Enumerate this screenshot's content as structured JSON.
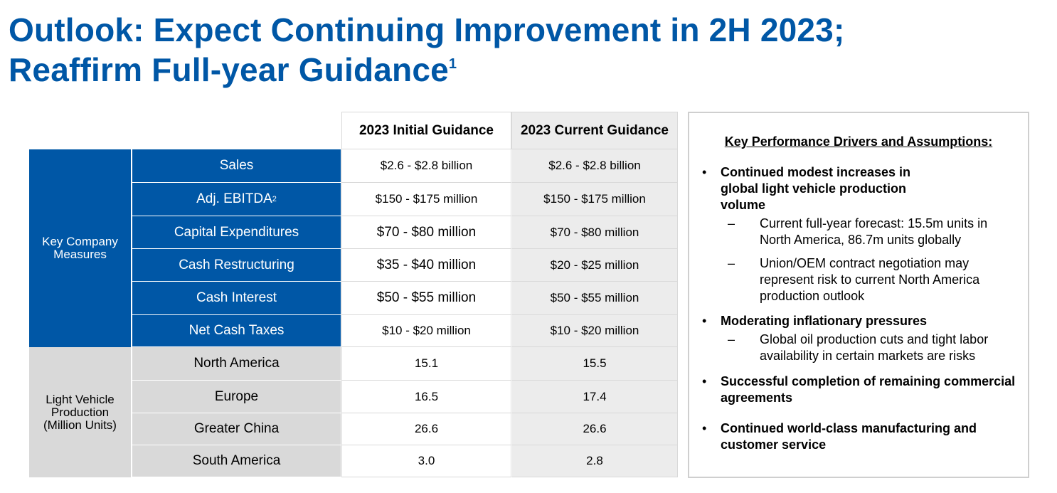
{
  "title": {
    "line1": "Outlook: Expect Continuing Improvement in 2H 2023;",
    "line2": "Reaffirm Full-year Guidance",
    "footnote": "1"
  },
  "table": {
    "headers": {
      "initial": "2023 Initial Guidance",
      "current": "2023 Current Guidance"
    },
    "groups": {
      "company": "Key Company Measures",
      "vehicle": "Light Vehicle Production (Million Units)"
    },
    "rows": [
      {
        "label": "Sales",
        "initial": "$2.6 - $2.8 billion",
        "current": "$2.6 - $2.8 billion"
      },
      {
        "label": "Adj. EBITDA",
        "sup": "2",
        "initial": "$150 - $175 million",
        "current": "$150 - $175 million"
      },
      {
        "label": "Capital Expenditures",
        "initial": "$70 - $80 million",
        "current": "$70 - $80 million"
      },
      {
        "label": "Cash Restructuring",
        "initial": "$35 - $40 million",
        "current": "$20 - $25 million"
      },
      {
        "label": "Cash Interest",
        "initial": "$50 - $55 million",
        "current": "$50 - $55 million"
      },
      {
        "label": "Net Cash Taxes",
        "initial": "$10 - $20 million",
        "current": "$10 - $20 million"
      },
      {
        "label": "North America",
        "initial": "15.1",
        "current": "15.5"
      },
      {
        "label": "Europe",
        "initial": "16.5",
        "current": "17.4"
      },
      {
        "label": "Greater China",
        "initial": "26.6",
        "current": "26.6"
      },
      {
        "label": "South America",
        "initial": "3.0",
        "current": "2.8"
      }
    ]
  },
  "drivers": {
    "title": "Key Performance Drivers and Assumptions:",
    "bullet_glyph": "•",
    "dash_glyph": "–",
    "bullets": [
      {
        "text": "Continued modest increases in global light vehicle production volume",
        "subs": [
          "Current full-year forecast: 15.5m units in North America, 86.7m units globally",
          "Union/OEM contract negotiation may represent risk to current North America production outlook"
        ]
      },
      {
        "text": "Moderating inflationary pressures",
        "subs": [
          "Global oil production cuts and tight labor availability in certain markets are risks"
        ]
      },
      {
        "text": "Successful completion of remaining commercial agreements"
      },
      {
        "text": "Continued world-class manufacturing and customer service"
      }
    ]
  }
}
